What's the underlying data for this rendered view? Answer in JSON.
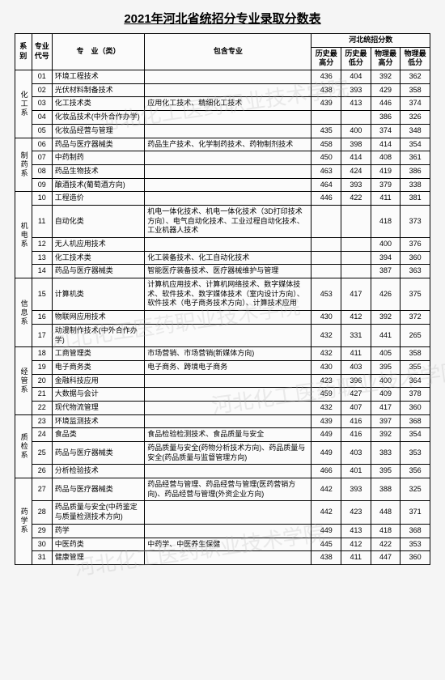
{
  "title": "2021年河北省统招分专业录取分数表",
  "watermark": "河北化工医药职业技术学院",
  "headers": {
    "dept": "系别",
    "code": "专业代号",
    "major": "专　业（类）",
    "included": "包含专业",
    "score_group": "河北统招分数",
    "h1": "历史最高分",
    "h2": "历史最低分",
    "h3": "物理最高分",
    "h4": "物理最低分"
  },
  "departments": [
    {
      "name": "化工系",
      "rows": [
        {
          "code": "01",
          "major": "环境工程技术",
          "inc": "",
          "s": [
            "436",
            "404",
            "392",
            "362"
          ]
        },
        {
          "code": "02",
          "major": "光伏材料制备技术",
          "inc": "",
          "s": [
            "438",
            "393",
            "429",
            "358"
          ]
        },
        {
          "code": "03",
          "major": "化工技术类",
          "inc": "应用化工技术、精细化工技术",
          "s": [
            "439",
            "413",
            "446",
            "374"
          ]
        },
        {
          "code": "04",
          "major": "化妆品技术(中外合作办学)",
          "inc": "",
          "s": [
            "",
            "",
            "386",
            "326"
          ]
        },
        {
          "code": "05",
          "major": "化妆品经营与管理",
          "inc": "",
          "s": [
            "435",
            "400",
            "374",
            "348"
          ]
        }
      ]
    },
    {
      "name": "制药系",
      "rows": [
        {
          "code": "06",
          "major": "药品与医疗器械类",
          "inc": "药品生产技术、化学制药技术、药物制剂技术",
          "s": [
            "458",
            "398",
            "414",
            "354"
          ]
        },
        {
          "code": "07",
          "major": "中药制药",
          "inc": "",
          "s": [
            "450",
            "414",
            "408",
            "361"
          ]
        },
        {
          "code": "08",
          "major": "药品生物技术",
          "inc": "",
          "s": [
            "463",
            "424",
            "419",
            "386"
          ]
        },
        {
          "code": "09",
          "major": "酿酒技术(葡萄酒方向)",
          "inc": "",
          "s": [
            "464",
            "393",
            "379",
            "338"
          ]
        }
      ]
    },
    {
      "name": "机电系",
      "rows": [
        {
          "code": "10",
          "major": "工程造价",
          "inc": "",
          "s": [
            "446",
            "422",
            "411",
            "381"
          ]
        },
        {
          "code": "11",
          "major": "自动化类",
          "inc": "机电一体化技术、机电一体化技术（3D打印技术方向）、电气自动化技术、工业过程自动化技术、工业机器人技术",
          "s": [
            "",
            "",
            "418",
            "373"
          ]
        },
        {
          "code": "12",
          "major": "无人机应用技术",
          "inc": "",
          "s": [
            "",
            "",
            "400",
            "376"
          ]
        },
        {
          "code": "13",
          "major": "化工技术类",
          "inc": "化工装备技术、化工自动化技术",
          "s": [
            "",
            "",
            "394",
            "360"
          ]
        },
        {
          "code": "14",
          "major": "药品与医疗器械类",
          "inc": "智能医疗装备技术、医疗器械维护与管理",
          "s": [
            "",
            "",
            "387",
            "363"
          ]
        }
      ]
    },
    {
      "name": "信息系",
      "rows": [
        {
          "code": "15",
          "major": "计算机类",
          "inc": "计算机应用技术、计算机网络技术、数字媒体技术、软件技术、数字媒体技术（室内设计方向）、软件技术（电子商务技术方向）、计算技术应用",
          "s": [
            "453",
            "417",
            "426",
            "375"
          ]
        },
        {
          "code": "16",
          "major": "物联网应用技术",
          "inc": "",
          "s": [
            "430",
            "412",
            "392",
            "372"
          ]
        },
        {
          "code": "17",
          "major": "动漫制作技术(中外合作办学)",
          "inc": "",
          "s": [
            "432",
            "331",
            "441",
            "265"
          ]
        }
      ]
    },
    {
      "name": "经管系",
      "rows": [
        {
          "code": "18",
          "major": "工商管理类",
          "inc": "市场营销、市场营销(新媒体方向)",
          "s": [
            "432",
            "411",
            "405",
            "358"
          ]
        },
        {
          "code": "19",
          "major": "电子商务类",
          "inc": "电子商务、跨境电子商务",
          "s": [
            "430",
            "403",
            "395",
            "355"
          ]
        },
        {
          "code": "20",
          "major": "金融科技应用",
          "inc": "",
          "s": [
            "423",
            "396",
            "400",
            "364"
          ]
        },
        {
          "code": "21",
          "major": "大数据与会计",
          "inc": "",
          "s": [
            "459",
            "427",
            "409",
            "378"
          ]
        },
        {
          "code": "22",
          "major": "现代物流管理",
          "inc": "",
          "s": [
            "432",
            "407",
            "417",
            "360"
          ]
        }
      ]
    },
    {
      "name": "质检系",
      "rows": [
        {
          "code": "23",
          "major": "环境监测技术",
          "inc": "",
          "s": [
            "439",
            "416",
            "397",
            "368"
          ]
        },
        {
          "code": "24",
          "major": "食品类",
          "inc": "食品检验检测技术、食品质量与安全",
          "s": [
            "449",
            "416",
            "392",
            "354"
          ]
        },
        {
          "code": "25",
          "major": "药品与医疗器械类",
          "inc": "药品质量与安全(药物分析技术方向)、药品质量与安全(药品质量与监督管理方向)",
          "s": [
            "449",
            "403",
            "383",
            "353"
          ]
        },
        {
          "code": "26",
          "major": "分析检验技术",
          "inc": "",
          "s": [
            "466",
            "401",
            "395",
            "356"
          ]
        }
      ]
    },
    {
      "name": "药学系",
      "rows": [
        {
          "code": "27",
          "major": "药品与医疗器械类",
          "inc": "药品经营与管理、药品经营与管理(医药营销方向)、药品经营与管理(外资企业方向)",
          "s": [
            "442",
            "393",
            "388",
            "325"
          ]
        },
        {
          "code": "28",
          "major": "药品质量与安全(中药鉴定与质量检测技术方向)",
          "inc": "",
          "s": [
            "442",
            "423",
            "448",
            "371"
          ]
        },
        {
          "code": "29",
          "major": "药学",
          "inc": "",
          "s": [
            "449",
            "413",
            "418",
            "368"
          ]
        },
        {
          "code": "30",
          "major": "中医药类",
          "inc": "中药学、中医养生保健",
          "s": [
            "445",
            "412",
            "422",
            "353"
          ]
        },
        {
          "code": "31",
          "major": "健康管理",
          "inc": "",
          "s": [
            "438",
            "411",
            "447",
            "360"
          ]
        }
      ]
    }
  ]
}
